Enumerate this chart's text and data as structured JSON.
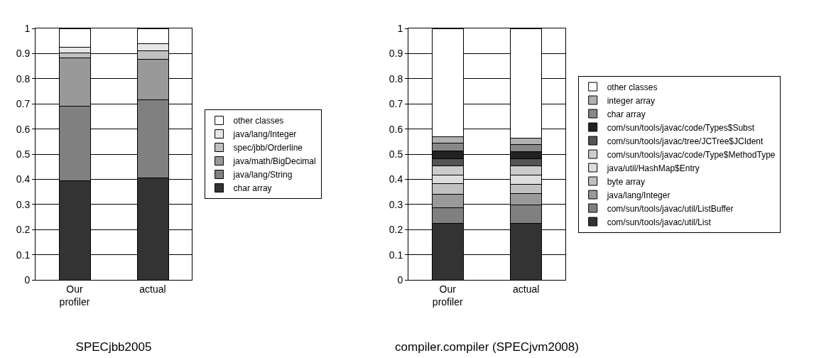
{
  "chart_data": [
    {
      "type": "bar",
      "title": "SPECjbb2005",
      "categories": [
        "Our profiler",
        "actual"
      ],
      "stacked": true,
      "legend": "right",
      "grid": "y",
      "ylim": [
        0,
        1
      ],
      "yticks": [
        0,
        0.1,
        0.2,
        0.3,
        0.4,
        0.5,
        0.6,
        0.7,
        0.8,
        0.9,
        1
      ],
      "series": [
        {
          "name": "char array",
          "color": "#333333",
          "values": [
            0.395,
            0.405
          ]
        },
        {
          "name": "java/lang/String",
          "color": "#808080",
          "values": [
            0.295,
            0.31
          ]
        },
        {
          "name": "java/math/BigDecimal",
          "color": "#999999",
          "values": [
            0.192,
            0.162
          ]
        },
        {
          "name": "spec/jbb/Orderline",
          "color": "#c0c0c0",
          "values": [
            0.02,
            0.035
          ]
        },
        {
          "name": "java/lang/Integer",
          "color": "#e6e6e6",
          "values": [
            0.023,
            0.028
          ]
        },
        {
          "name": "other classes",
          "color": "#ffffff",
          "values": [
            0.075,
            0.06
          ]
        }
      ]
    },
    {
      "type": "bar",
      "title": "compiler.compiler (SPECjvm2008)",
      "categories": [
        "Our profiler",
        "actual"
      ],
      "stacked": true,
      "legend": "right",
      "grid": "y",
      "ylim": [
        0,
        1
      ],
      "yticks": [
        0,
        0.1,
        0.2,
        0.3,
        0.4,
        0.5,
        0.6,
        0.7,
        0.8,
        0.9,
        1
      ],
      "series": [
        {
          "name": "com/sun/tools/javac/util/List",
          "color": "#333333",
          "values": [
            0.226,
            0.226
          ]
        },
        {
          "name": "com/sun/tools/javac/util/ListBuffer",
          "color": "#808080",
          "values": [
            0.061,
            0.072
          ]
        },
        {
          "name": "java/lang/Integer",
          "color": "#999999",
          "values": [
            0.053,
            0.045
          ]
        },
        {
          "name": "byte array",
          "color": "#c0c0c0",
          "values": [
            0.042,
            0.037
          ]
        },
        {
          "name": "java/util/HashMap$Entry",
          "color": "#dddddd",
          "values": [
            0.036,
            0.038
          ]
        },
        {
          "name": "com/sun/tools/javac/code/Type$MethodType",
          "color": "#cccccc",
          "values": [
            0.034,
            0.034
          ]
        },
        {
          "name": "com/sun/tools/javac/tree/JCTree$JCIdent",
          "color": "#555555",
          "values": [
            0.031,
            0.03
          ]
        },
        {
          "name": "com/sun/tools/javac/code/Types$Subst",
          "color": "#222222",
          "values": [
            0.031,
            0.028
          ]
        },
        {
          "name": "char array",
          "color": "#888888",
          "values": [
            0.029,
            0.028
          ]
        },
        {
          "name": "integer array",
          "color": "#b0b0b0",
          "values": [
            0.027,
            0.025
          ]
        },
        {
          "name": "other classes",
          "color": "#ffffff",
          "values": [
            0.43,
            0.437
          ]
        }
      ]
    }
  ]
}
